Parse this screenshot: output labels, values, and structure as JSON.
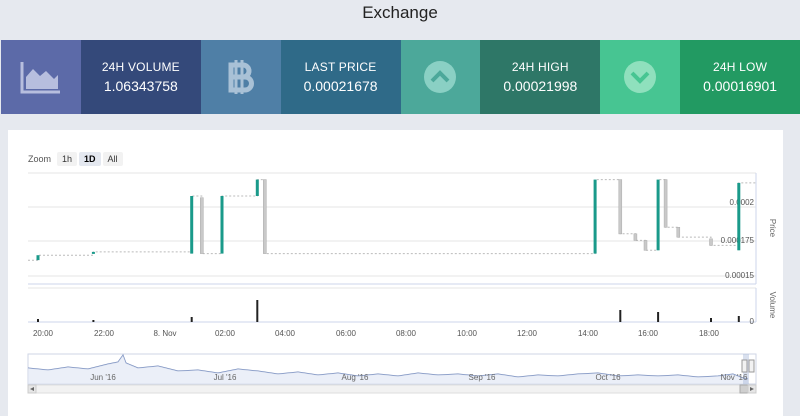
{
  "page": {
    "title": "Exchange"
  },
  "stats": [
    {
      "label": "24H VOLUME",
      "value": "1.06343758"
    },
    {
      "label": "LAST PRICE",
      "value": "0.00021678"
    },
    {
      "label": "24H HIGH",
      "value": "0.00021998"
    },
    {
      "label": "24H LOW",
      "value": "0.00016901"
    }
  ],
  "colors": {
    "volume_icon_bg": "#5c6aa8",
    "volume_bg": "#34497a",
    "btc_icon_bg": "#4f7fa6",
    "price_bg": "#2f6a88",
    "up_icon_bg": "#4ca89a",
    "high_bg": "#2e7767",
    "down_icon_bg": "#47c592",
    "low_bg": "#229a62",
    "candle_up": "#1a9a8a",
    "candle_down": "#c9c9c9"
  },
  "icons": [
    "area-chart-icon",
    "bitcoin-icon",
    "chevron-up-icon",
    "chevron-down-icon"
  ],
  "chart": {
    "zoom_label": "Zoom",
    "zoom_buttons": [
      "1h",
      "1D",
      "All"
    ],
    "zoom_selected": "1D",
    "price_axis_title": "Price",
    "volume_axis_title": "Volume",
    "price_ticks": [
      "0.0002",
      "0.000175",
      "0.00015"
    ],
    "volume_ticks": [
      "0"
    ],
    "time_ticks": [
      "20:00",
      "22:00",
      "8. Nov",
      "02:00",
      "04:00",
      "06:00",
      "08:00",
      "10:00",
      "12:00",
      "14:00",
      "16:00",
      "18:00"
    ],
    "navigator_ticks": [
      "Jun '16",
      "Jul '16",
      "Aug '16",
      "Sep '16",
      "Oct '16",
      "Nov '16"
    ]
  },
  "chart_data": {
    "type": "candlestick",
    "ylabel": "Price",
    "ylim": [
      0.0001475,
      0.000215
    ],
    "x": [
      "19:50",
      "21:40",
      "00:55",
      "01:15",
      "01:55",
      "03:05",
      "03:20",
      "14:15",
      "15:05",
      "15:35",
      "15:55",
      "16:20",
      "16:35",
      "17:00",
      "18:05",
      "19:00"
    ],
    "open": [
      0.000162,
      0.000166,
      0.000166,
      0.0002,
      0.000166,
      0.000201,
      0.000211,
      0.000166,
      0.000211,
      0.000178,
      0.000174,
      0.000168,
      0.000211,
      0.000182,
      0.000175,
      0.000168
    ],
    "close": [
      0.000165,
      0.000167,
      0.000201,
      0.000166,
      0.000201,
      0.000211,
      0.000166,
      0.000211,
      0.000178,
      0.000174,
      0.000168,
      0.000211,
      0.000182,
      0.000176,
      0.000171,
      0.000209
    ],
    "volume_series_name": "Volume",
    "volume": [
      0.03,
      0.02,
      0.05,
      0.0,
      0.0,
      0.22,
      0.0,
      0.0,
      0.12,
      0.0,
      0.0,
      0.1,
      0.0,
      0.0,
      0.04,
      0.06
    ]
  }
}
